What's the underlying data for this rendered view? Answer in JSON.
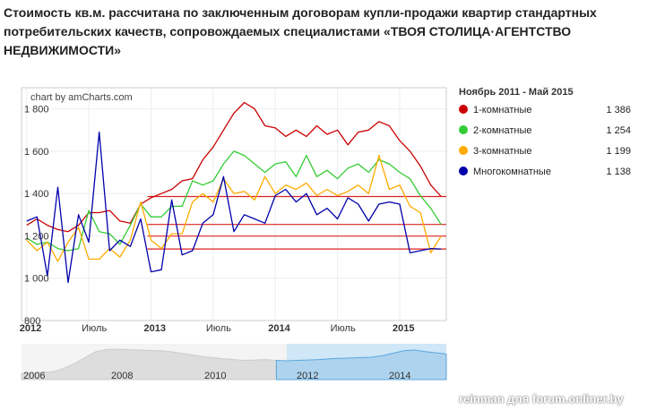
{
  "header": {
    "title": "Стоимость кв.м. рассчитана по заключенным договорам купли-продажи квартир стандартных потребительских качеств, сопровождаемых специалистами «ТВОЯ СТОЛИЦА·АГЕНТСТВО НЕДВИЖИМОСТИ»"
  },
  "credit": "chart by amCharts.com",
  "watermark": "reinman для forum.onliner.by",
  "chart_data": {
    "type": "line",
    "x": [
      "2012-01",
      "2012-02",
      "2012-03",
      "2012-04",
      "2012-05",
      "2012-06",
      "2012-07",
      "2012-08",
      "2012-09",
      "2012-10",
      "2012-11",
      "2012-12",
      "2013-01",
      "2013-02",
      "2013-03",
      "2013-04",
      "2013-05",
      "2013-06",
      "2013-07",
      "2013-08",
      "2013-09",
      "2013-10",
      "2013-11",
      "2013-12",
      "2014-01",
      "2014-02",
      "2014-03",
      "2014-04",
      "2014-05",
      "2014-06",
      "2014-07",
      "2014-08",
      "2014-09",
      "2014-10",
      "2014-11",
      "2014-12",
      "2015-01",
      "2015-02",
      "2015-03",
      "2015-04",
      "2015-05"
    ],
    "series": [
      {
        "name": "1-комнатные",
        "color": "#cc0000",
        "values": [
          1250,
          1280,
          1250,
          1230,
          1220,
          1250,
          1310,
          1310,
          1320,
          1270,
          1260,
          1350,
          1380,
          1400,
          1420,
          1460,
          1470,
          1560,
          1620,
          1700,
          1780,
          1830,
          1800,
          1720,
          1710,
          1670,
          1700,
          1670,
          1720,
          1680,
          1700,
          1630,
          1690,
          1700,
          1740,
          1720,
          1650,
          1600,
          1530,
          1440,
          1386
        ]
      },
      {
        "name": "2-комнатные",
        "color": "#33cc33",
        "values": [
          1190,
          1160,
          1170,
          1140,
          1130,
          1140,
          1320,
          1220,
          1210,
          1160,
          1250,
          1350,
          1290,
          1290,
          1340,
          1340,
          1460,
          1440,
          1460,
          1540,
          1600,
          1580,
          1540,
          1500,
          1540,
          1550,
          1480,
          1580,
          1480,
          1510,
          1470,
          1520,
          1540,
          1500,
          1560,
          1540,
          1500,
          1470,
          1390,
          1330,
          1254
        ]
      },
      {
        "name": "3-комнатные",
        "color": "#ffaa00",
        "values": [
          1180,
          1130,
          1170,
          1080,
          1170,
          1240,
          1090,
          1090,
          1140,
          1100,
          1180,
          1360,
          1180,
          1140,
          1210,
          1210,
          1360,
          1400,
          1360,
          1470,
          1400,
          1410,
          1370,
          1480,
          1400,
          1440,
          1420,
          1450,
          1390,
          1420,
          1390,
          1410,
          1440,
          1400,
          1580,
          1420,
          1440,
          1340,
          1310,
          1120,
          1199
        ]
      },
      {
        "name": "Многокомнатные",
        "color": "#0000aa",
        "values": [
          1270,
          1290,
          1010,
          1430,
          980,
          1300,
          1170,
          1690,
          1130,
          1180,
          1150,
          1280,
          1030,
          1040,
          1370,
          1110,
          1130,
          1260,
          1300,
          1480,
          1220,
          1300,
          1280,
          1260,
          1390,
          1420,
          1360,
          1400,
          1300,
          1330,
          1280,
          1380,
          1350,
          1270,
          1350,
          1360,
          1350,
          1120,
          1130,
          1140,
          1138
        ]
      }
    ],
    "ylim": [
      800,
      1900
    ],
    "y_ticks": [
      "800",
      "1 000",
      "1 200",
      "1 400",
      "1 600",
      "1 800"
    ],
    "x_ticks": [
      {
        "label": "2012",
        "bold": true,
        "pos": "2012-01"
      },
      {
        "label": "Июль",
        "bold": false,
        "pos": "2012-07"
      },
      {
        "label": "2013",
        "bold": true,
        "pos": "2013-01"
      },
      {
        "label": "Июль",
        "bold": false,
        "pos": "2013-07"
      },
      {
        "label": "2014",
        "bold": true,
        "pos": "2014-01"
      },
      {
        "label": "Июль",
        "bold": false,
        "pos": "2014-07"
      },
      {
        "label": "2015",
        "bold": true,
        "pos": "2015-01"
      }
    ],
    "reference_lines": [
      1386,
      1254,
      1199,
      1138
    ],
    "reference_color": "#dd2222",
    "grid": true,
    "legend": {
      "placement": "right",
      "title": "Ноябрь 2011 - Май 2015",
      "items": [
        {
          "label": "1-комнатные",
          "value": "1 386",
          "color": "#cc0000"
        },
        {
          "label": "2-комнатные",
          "value": "1 254",
          "color": "#33cc33"
        },
        {
          "label": "3-комнатные",
          "value": "1 199",
          "color": "#ffaa00"
        },
        {
          "label": "Многокомнатные",
          "value": "1 138",
          "color": "#0000aa"
        }
      ]
    },
    "scrollbar": {
      "labels": [
        "2006",
        "2008",
        "2010",
        "2012",
        "2014"
      ],
      "selected_from": "2011-11",
      "selected_to": "2015-05",
      "profile": [
        1050,
        1060,
        1080,
        1100,
        1180,
        1300,
        1450,
        1600,
        1650,
        1660,
        1650,
        1640,
        1630,
        1620,
        1600,
        1560,
        1520,
        1480,
        1450,
        1420,
        1400,
        1380,
        1390,
        1400,
        1380,
        1370,
        1380,
        1390,
        1400,
        1420,
        1430,
        1440,
        1450,
        1460,
        1500,
        1560,
        1620,
        1640,
        1600,
        1570,
        1540
      ],
      "unselected_color": "#dddddd",
      "selected_color": "#cfe7f7"
    }
  }
}
